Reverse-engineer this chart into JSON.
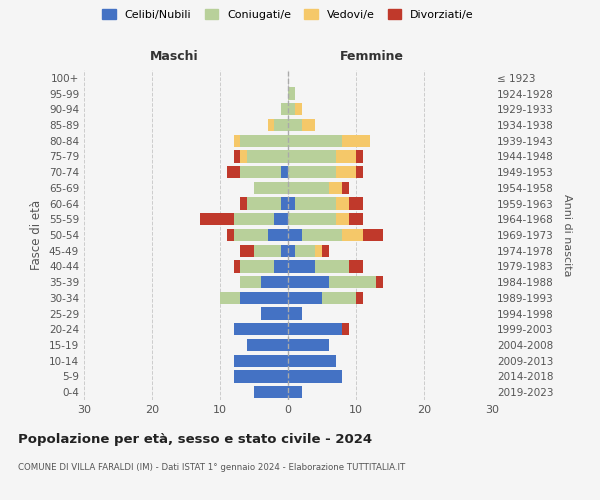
{
  "age_groups": [
    "0-4",
    "5-9",
    "10-14",
    "15-19",
    "20-24",
    "25-29",
    "30-34",
    "35-39",
    "40-44",
    "45-49",
    "50-54",
    "55-59",
    "60-64",
    "65-69",
    "70-74",
    "75-79",
    "80-84",
    "85-89",
    "90-94",
    "95-99",
    "100+"
  ],
  "birth_years": [
    "2019-2023",
    "2014-2018",
    "2009-2013",
    "2004-2008",
    "1999-2003",
    "1994-1998",
    "1989-1993",
    "1984-1988",
    "1979-1983",
    "1974-1978",
    "1969-1973",
    "1964-1968",
    "1959-1963",
    "1954-1958",
    "1949-1953",
    "1944-1948",
    "1939-1943",
    "1934-1938",
    "1929-1933",
    "1924-1928",
    "≤ 1923"
  ],
  "male": {
    "celibi": [
      5,
      8,
      8,
      6,
      8,
      4,
      7,
      4,
      2,
      1,
      3,
      2,
      1,
      0,
      1,
      0,
      0,
      0,
      0,
      0,
      0
    ],
    "coniugati": [
      0,
      0,
      0,
      0,
      0,
      0,
      3,
      3,
      5,
      4,
      5,
      6,
      5,
      5,
      6,
      6,
      7,
      2,
      1,
      0,
      0
    ],
    "vedovi": [
      0,
      0,
      0,
      0,
      0,
      0,
      0,
      0,
      0,
      0,
      0,
      0,
      0,
      0,
      0,
      1,
      1,
      1,
      0,
      0,
      0
    ],
    "divorziati": [
      0,
      0,
      0,
      0,
      0,
      0,
      0,
      0,
      1,
      2,
      1,
      5,
      1,
      0,
      2,
      1,
      0,
      0,
      0,
      0,
      0
    ]
  },
  "female": {
    "nubili": [
      2,
      8,
      7,
      6,
      8,
      2,
      5,
      6,
      4,
      1,
      2,
      0,
      1,
      0,
      0,
      0,
      0,
      0,
      0,
      0,
      0
    ],
    "coniugate": [
      0,
      0,
      0,
      0,
      0,
      0,
      5,
      7,
      5,
      3,
      6,
      7,
      6,
      6,
      7,
      7,
      8,
      2,
      1,
      1,
      0
    ],
    "vedove": [
      0,
      0,
      0,
      0,
      0,
      0,
      0,
      0,
      0,
      1,
      3,
      2,
      2,
      2,
      3,
      3,
      4,
      2,
      1,
      0,
      0
    ],
    "divorziate": [
      0,
      0,
      0,
      0,
      1,
      0,
      1,
      1,
      2,
      1,
      3,
      2,
      2,
      1,
      1,
      1,
      0,
      0,
      0,
      0,
      0
    ]
  },
  "colors": {
    "celibi_nubili": "#4472c4",
    "coniugati": "#b8d09a",
    "vedovi": "#f5c869",
    "divorziati": "#c0392b"
  },
  "xlim": 30,
  "title": "Popolazione per età, sesso e stato civile - 2024",
  "subtitle": "COMUNE DI VILLA FARALDI (IM) - Dati ISTAT 1° gennaio 2024 - Elaborazione TUTTITALIA.IT",
  "ylabel_left": "Fasce di età",
  "ylabel_right": "Anni di nascita",
  "xlabel_left": "Maschi",
  "xlabel_right": "Femmine",
  "background_color": "#f5f5f5"
}
